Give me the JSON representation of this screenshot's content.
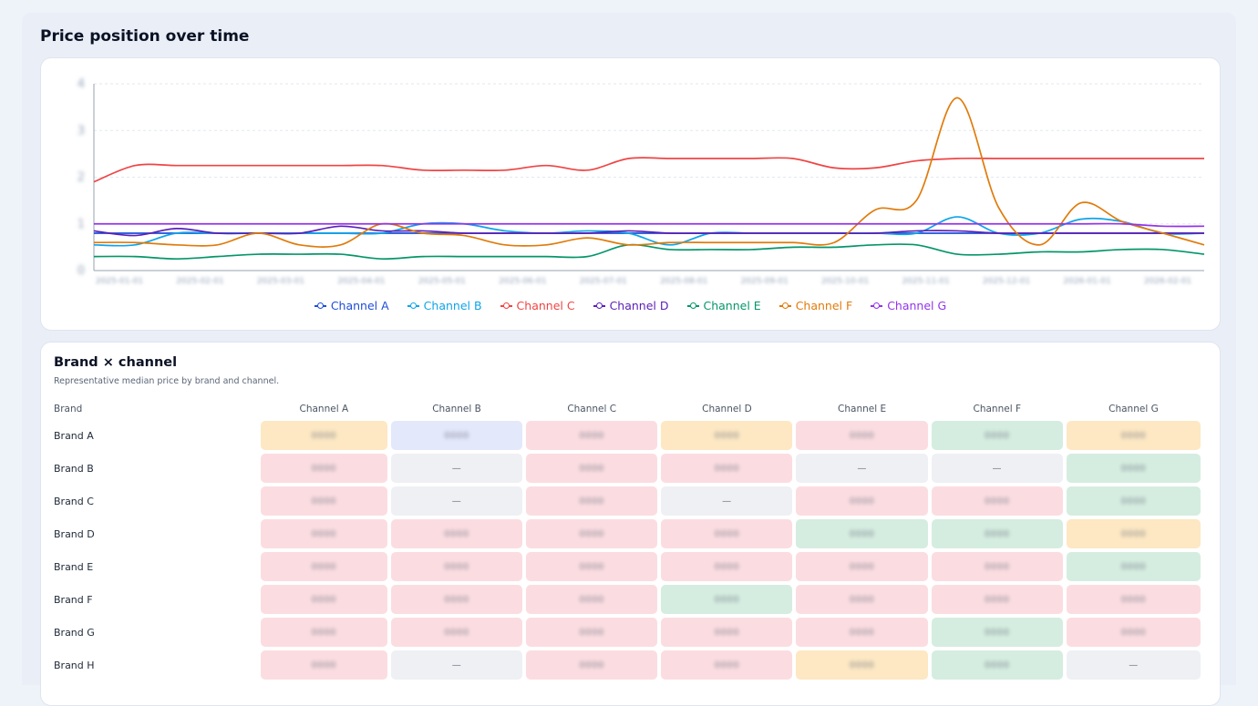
{
  "section": {
    "title": "Price position over time"
  },
  "chart_data": {
    "type": "line",
    "title": "",
    "xlabel": "",
    "ylabel": "",
    "x_ticks": [
      "2025-01-01",
      "2025-02-01",
      "2025-03-01",
      "2025-04-01",
      "2025-05-01",
      "2025-06-01",
      "2025-07-01",
      "2025-08-01",
      "2025-09-01",
      "2025-10-01",
      "2025-11-01",
      "2025-12-01",
      "2026-01-01",
      "2026-02-01"
    ],
    "y_ticks": [
      "0",
      "1",
      "2",
      "3",
      "4"
    ],
    "ylim": [
      0,
      4
    ],
    "grid": true,
    "legend_position": "bottom",
    "x_index": [
      0,
      0.5,
      1,
      1.5,
      2,
      2.5,
      3,
      3.5,
      4,
      4.5,
      5,
      5.5,
      6,
      6.5,
      7,
      7.5,
      8,
      8.5,
      9,
      9.5,
      10,
      10.5,
      11,
      11.5,
      12,
      12.5,
      13,
      13.5
    ],
    "series": [
      {
        "name": "Channel A",
        "color": "#1d4ed8",
        "values": [
          0.8,
          0.8,
          0.8,
          0.8,
          0.8,
          0.8,
          0.8,
          0.8,
          0.8,
          0.8,
          0.8,
          0.8,
          0.8,
          0.8,
          0.8,
          0.8,
          0.8,
          0.8,
          0.8,
          0.8,
          0.8,
          0.8,
          0.8,
          0.8,
          0.8,
          0.8,
          0.8,
          0.8
        ]
      },
      {
        "name": "Channel B",
        "color": "#0ea5e9",
        "values": [
          0.55,
          0.55,
          0.8,
          0.8,
          0.8,
          0.8,
          0.8,
          0.8,
          1.0,
          1.0,
          0.85,
          0.8,
          0.85,
          0.8,
          0.55,
          0.8,
          0.8,
          0.8,
          0.8,
          0.8,
          0.8,
          1.15,
          0.8,
          0.8,
          1.1,
          1.05,
          0.8,
          0.8
        ]
      },
      {
        "name": "Channel C",
        "color": "#ef4444",
        "values": [
          1.9,
          2.25,
          2.25,
          2.25,
          2.25,
          2.25,
          2.25,
          2.25,
          2.15,
          2.15,
          2.15,
          2.25,
          2.15,
          2.4,
          2.4,
          2.4,
          2.4,
          2.4,
          2.2,
          2.2,
          2.35,
          2.4,
          2.4,
          2.4,
          2.4,
          2.4,
          2.4,
          2.4
        ]
      },
      {
        "name": "Channel D",
        "color": "#5b21b6",
        "values": [
          0.85,
          0.75,
          0.9,
          0.8,
          0.8,
          0.8,
          0.95,
          0.85,
          0.85,
          0.8,
          0.8,
          0.8,
          0.8,
          0.85,
          0.8,
          0.8,
          0.8,
          0.8,
          0.8,
          0.8,
          0.85,
          0.85,
          0.8,
          0.8,
          0.8,
          0.8,
          0.8,
          0.8
        ]
      },
      {
        "name": "Channel E",
        "color": "#059669",
        "values": [
          0.3,
          0.3,
          0.25,
          0.3,
          0.35,
          0.35,
          0.35,
          0.25,
          0.3,
          0.3,
          0.3,
          0.3,
          0.3,
          0.55,
          0.45,
          0.45,
          0.45,
          0.5,
          0.5,
          0.55,
          0.55,
          0.35,
          0.35,
          0.4,
          0.4,
          0.45,
          0.45,
          0.35
        ]
      },
      {
        "name": "Channel F",
        "color": "#e07b0b",
        "values": [
          0.6,
          0.6,
          0.55,
          0.55,
          0.8,
          0.55,
          0.55,
          1.0,
          0.8,
          0.75,
          0.55,
          0.55,
          0.7,
          0.55,
          0.6,
          0.6,
          0.6,
          0.6,
          0.6,
          1.3,
          1.5,
          3.7,
          1.35,
          0.55,
          1.45,
          1.05,
          0.8,
          0.55
        ]
      },
      {
        "name": "Channel G",
        "color": "#9333ea",
        "values": [
          1.0,
          1.0,
          1.0,
          1.0,
          1.0,
          1.0,
          1.0,
          1.0,
          1.0,
          1.0,
          1.0,
          1.0,
          1.0,
          1.0,
          1.0,
          1.0,
          1.0,
          1.0,
          1.0,
          1.0,
          1.0,
          1.0,
          1.0,
          1.0,
          1.0,
          1.0,
          0.95,
          0.95
        ]
      }
    ]
  },
  "table": {
    "title": "Brand × channel",
    "subtitle": "Representative median price by brand and channel.",
    "header_brand": "Brand",
    "columns": [
      "Channel A",
      "Channel B",
      "Channel C",
      "Channel D",
      "Channel E",
      "Channel F",
      "Channel G"
    ],
    "rows": [
      {
        "brand": "Brand A",
        "cells": [
          {
            "status": "amber",
            "value": "0000"
          },
          {
            "status": "blue",
            "value": "0000"
          },
          {
            "status": "red",
            "value": "0000"
          },
          {
            "status": "amber",
            "value": "0000"
          },
          {
            "status": "red",
            "value": "0000"
          },
          {
            "status": "green",
            "value": "0000"
          },
          {
            "status": "amber",
            "value": "0000"
          }
        ]
      },
      {
        "brand": "Brand B",
        "cells": [
          {
            "status": "red",
            "value": "0000"
          },
          {
            "status": "gray",
            "value": "—"
          },
          {
            "status": "red",
            "value": "0000"
          },
          {
            "status": "red",
            "value": "0000"
          },
          {
            "status": "gray",
            "value": "—"
          },
          {
            "status": "gray",
            "value": "—"
          },
          {
            "status": "green",
            "value": "0000"
          }
        ]
      },
      {
        "brand": "Brand C",
        "cells": [
          {
            "status": "red",
            "value": "0000"
          },
          {
            "status": "gray",
            "value": "—"
          },
          {
            "status": "red",
            "value": "0000"
          },
          {
            "status": "gray",
            "value": "—"
          },
          {
            "status": "red",
            "value": "0000"
          },
          {
            "status": "red",
            "value": "0000"
          },
          {
            "status": "green",
            "value": "0000"
          }
        ]
      },
      {
        "brand": "Brand D",
        "cells": [
          {
            "status": "red",
            "value": "0000"
          },
          {
            "status": "red",
            "value": "0000"
          },
          {
            "status": "red",
            "value": "0000"
          },
          {
            "status": "red",
            "value": "0000"
          },
          {
            "status": "green",
            "value": "0000"
          },
          {
            "status": "green",
            "value": "0000"
          },
          {
            "status": "amber",
            "value": "0000"
          }
        ]
      },
      {
        "brand": "Brand E",
        "cells": [
          {
            "status": "red",
            "value": "0000"
          },
          {
            "status": "red",
            "value": "0000"
          },
          {
            "status": "red",
            "value": "0000"
          },
          {
            "status": "red",
            "value": "0000"
          },
          {
            "status": "red",
            "value": "0000"
          },
          {
            "status": "red",
            "value": "0000"
          },
          {
            "status": "green",
            "value": "0000"
          }
        ]
      },
      {
        "brand": "Brand F",
        "cells": [
          {
            "status": "red",
            "value": "0000"
          },
          {
            "status": "red",
            "value": "0000"
          },
          {
            "status": "red",
            "value": "0000"
          },
          {
            "status": "green",
            "value": "0000"
          },
          {
            "status": "red",
            "value": "0000"
          },
          {
            "status": "red",
            "value": "0000"
          },
          {
            "status": "red",
            "value": "0000"
          }
        ]
      },
      {
        "brand": "Brand G",
        "cells": [
          {
            "status": "red",
            "value": "0000"
          },
          {
            "status": "red",
            "value": "0000"
          },
          {
            "status": "red",
            "value": "0000"
          },
          {
            "status": "red",
            "value": "0000"
          },
          {
            "status": "red",
            "value": "0000"
          },
          {
            "status": "green",
            "value": "0000"
          },
          {
            "status": "red",
            "value": "0000"
          }
        ]
      },
      {
        "brand": "Brand H",
        "cells": [
          {
            "status": "red",
            "value": "0000"
          },
          {
            "status": "gray",
            "value": "—"
          },
          {
            "status": "red",
            "value": "0000"
          },
          {
            "status": "red",
            "value": "0000"
          },
          {
            "status": "amber",
            "value": "0000"
          },
          {
            "status": "green",
            "value": "0000"
          },
          {
            "status": "gray",
            "value": "—"
          }
        ]
      }
    ]
  }
}
